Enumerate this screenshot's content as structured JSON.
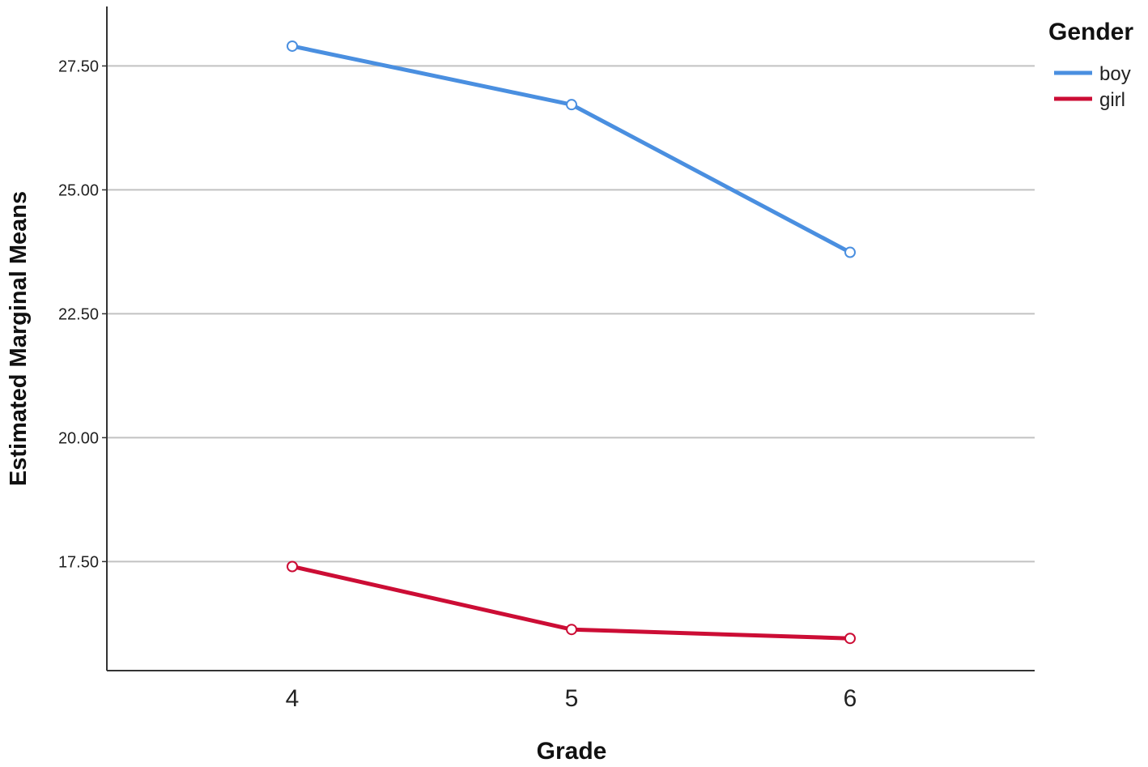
{
  "chart_data": {
    "type": "line",
    "title": "",
    "xlabel": "Grade",
    "ylabel": "Estimated Marginal Means",
    "categories": [
      "4",
      "5",
      "6"
    ],
    "ylim": [
      15.3,
      28.7
    ],
    "yticks": [
      17.5,
      20.0,
      22.5,
      25.0,
      27.5
    ],
    "ytick_labels": [
      "17.50",
      "20.00",
      "22.50",
      "25.00",
      "27.50"
    ],
    "grid": true,
    "legend": {
      "title": "Gender",
      "placement": "top-right"
    },
    "series": [
      {
        "name": "boy",
        "color": "#4a8fe0",
        "values": [
          27.9,
          26.72,
          23.74
        ]
      },
      {
        "name": "girl",
        "color": "#cc0d35",
        "values": [
          17.4,
          16.13,
          15.95
        ]
      }
    ]
  }
}
